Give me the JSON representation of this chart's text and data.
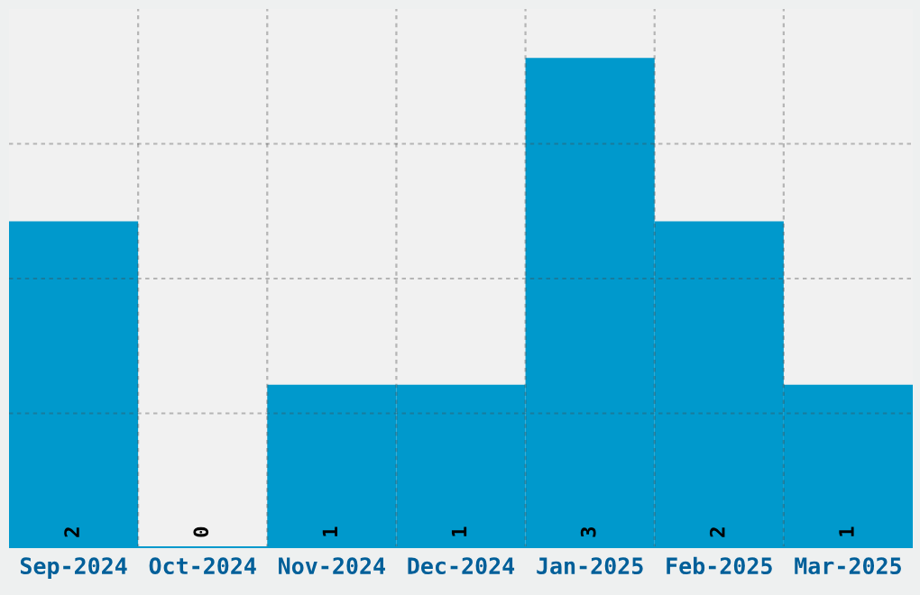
{
  "chart_data": {
    "type": "bar",
    "categories": [
      "Sep-2024",
      "Oct-2024",
      "Nov-2024",
      "Dec-2024",
      "Jan-2025",
      "Feb-2025",
      "Mar-2025"
    ],
    "values": [
      2,
      0,
      1,
      1,
      3,
      2,
      1
    ],
    "color": "#0099cc",
    "ylim": [
      0,
      3.3
    ],
    "yticks": [
      {
        "value": 0.825,
        "label": null
      },
      {
        "value": 1.65,
        "label": null
      },
      {
        "value": 2.475,
        "label": null
      }
    ],
    "tick_labels": "x",
    "grid": true,
    "data_labels": true
  }
}
